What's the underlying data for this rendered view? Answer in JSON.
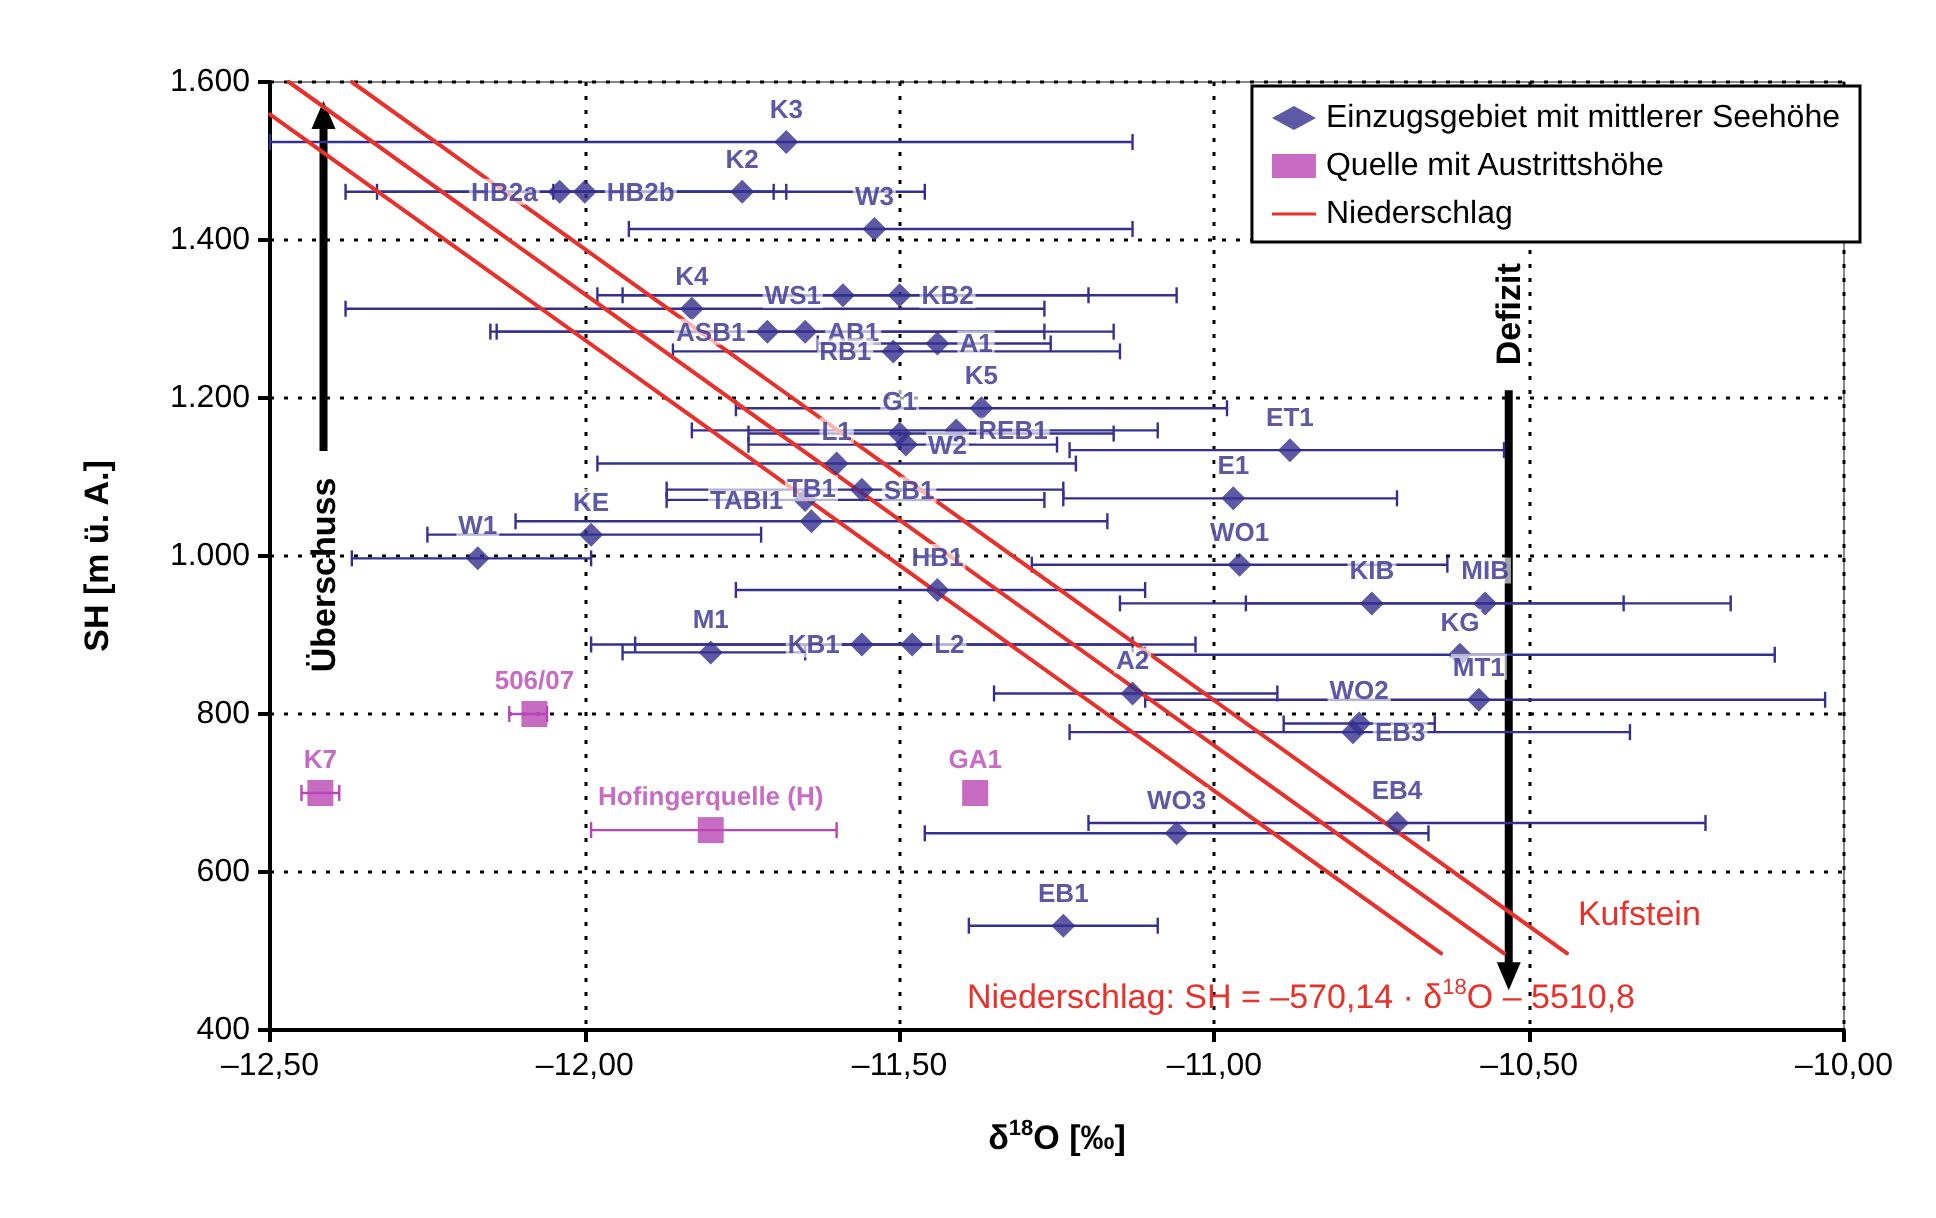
{
  "chart_data": {
    "type": "scatter",
    "xlabel": "δ$^{18}$O [‰]",
    "ylabel": "SH [m ü. A.]",
    "xlim": [
      -12.5,
      -10.0
    ],
    "ylim": [
      400,
      1600
    ],
    "xticks": [
      {
        "value": -12.5,
        "label": "–12,50"
      },
      {
        "value": -12.0,
        "label": "–12,00"
      },
      {
        "value": -11.5,
        "label": "–11,50"
      },
      {
        "value": -11.0,
        "label": "–11,00"
      },
      {
        "value": -10.5,
        "label": "–10,50"
      },
      {
        "value": -10.0,
        "label": "–10,00"
      }
    ],
    "yticks": [
      400,
      600,
      800,
      {
        "value": 1000,
        "label": "1.000"
      },
      {
        "value": 1200,
        "label": "1.200"
      },
      {
        "value": 1400,
        "label": "1.400"
      },
      {
        "value": 1600,
        "label": "1.600"
      }
    ],
    "grid": true,
    "legend": "top right",
    "series": [
      {
        "name": "Einzugsgebiet mit mittlerer Seehöhe",
        "color": "#35308f",
        "marker": "diamond",
        "x": [
          -11.68,
          -12.04,
          -12.0,
          -11.75,
          -11.54,
          -11.83,
          -11.59,
          -11.5,
          -11.71,
          -11.65,
          -11.44,
          -11.51,
          -11.37,
          -11.5,
          -11.41,
          -11.49,
          -10.88,
          -11.6,
          -11.56,
          -11.65,
          -10.97,
          -11.64,
          -11.99,
          -12.17,
          -10.96,
          -11.44,
          -10.75,
          -10.57,
          -11.56,
          -11.48,
          -11.8,
          -10.61,
          -11.13,
          -10.58,
          -10.77,
          -10.78,
          -10.71,
          -11.06,
          -11.24
        ],
        "values": [
          1524,
          1461,
          1461,
          1461,
          1414,
          1313,
          1330,
          1330,
          1284,
          1284,
          1269,
          1259,
          1187,
          1155,
          1159,
          1141,
          1134,
          1117,
          1084,
          1071,
          1073,
          1044,
          1027,
          997,
          989,
          957,
          940,
          940,
          888,
          888,
          878,
          875,
          826,
          818,
          788,
          777,
          662,
          649,
          532
        ],
        "xerrors": [
          [
            -12.5,
            -11.13
          ],
          [
            -12.33,
            -11.7
          ],
          [
            -12.38,
            -11.68
          ],
          [
            -12.05,
            -11.46
          ],
          [
            -11.93,
            -11.13
          ],
          [
            -12.38,
            -11.27
          ],
          [
            -11.94,
            -11.2
          ],
          [
            -11.98,
            -11.06
          ],
          [
            -12.14,
            -11.27
          ],
          [
            -12.15,
            -11.16
          ],
          [
            -11.63,
            -11.26
          ],
          [
            -11.86,
            -11.15
          ],
          [
            -11.76,
            -10.98
          ],
          [
            -11.74,
            -11.16
          ],
          [
            -11.83,
            -11.09
          ],
          [
            -11.74,
            -11.25
          ],
          [
            -11.23,
            -10.54
          ],
          [
            -11.98,
            -11.22
          ],
          [
            -11.87,
            -11.24
          ],
          [
            -11.87,
            -11.27
          ],
          [
            -11.24,
            -10.71
          ],
          [
            -12.11,
            -11.17
          ],
          [
            -12.25,
            -11.72
          ],
          [
            -12.37,
            -11.99
          ],
          [
            -11.29,
            -10.63
          ],
          [
            -11.76,
            -11.11
          ],
          [
            -10.95,
            -10.35
          ],
          [
            -11.15,
            -10.18
          ],
          [
            -11.92,
            -11.13
          ],
          [
            -11.99,
            -11.03
          ],
          [
            -11.94,
            -11.65
          ],
          [
            -11.11,
            -10.11
          ],
          [
            -11.35,
            -10.9
          ],
          [
            -11.11,
            -10.03
          ],
          [
            -10.89,
            -10.65
          ],
          [
            -11.23,
            -10.34
          ],
          [
            -11.2,
            -10.22
          ],
          [
            -11.46,
            -10.66
          ],
          [
            -11.39,
            -11.09
          ]
        ]
      },
      {
        "name": "Quelle mit Austrittshöhe",
        "color": "#b946b4",
        "marker": "square",
        "x": [
          -12.08,
          -12.42,
          -11.38,
          -11.8
        ],
        "values": [
          800,
          700,
          700,
          653
        ],
        "xerrors": [
          [
            -12.12,
            -12.06
          ],
          [
            -12.45,
            -12.39
          ],
          null,
          [
            -11.99,
            -11.6
          ]
        ]
      },
      {
        "name": "Niederschlag",
        "type": "line",
        "color": "#e8312a",
        "marker": "none",
        "line_style": "solid",
        "x": [
          -12.47,
          -10.54
        ],
        "values": [
          1600,
          497
        ]
      },
      {
        "type": "line",
        "color": "#e8312a",
        "marker": "none",
        "line_style": "solid",
        "x": [
          -12.37,
          -10.44
        ],
        "values": [
          1600,
          497
        ]
      },
      {
        "type": "line",
        "color": "#e8312a",
        "marker": "none",
        "line_style": "solid",
        "x": [
          -12.5,
          -10.64
        ],
        "values": [
          1559,
          497
        ]
      }
    ],
    "annotations": [
      "Überschuss",
      "Defizit",
      "Kufstein",
      "Niederschlag: SH = –570,14 · δ$^{18}$O – 5510,8",
      {
        "text": "K3",
        "x": -11.68,
        "y": 1524
      },
      {
        "text": "HB2a",
        "x": -12.04,
        "y": 1461
      },
      {
        "text": "HB2b",
        "x": -12.0,
        "y": 1461
      },
      {
        "text": "K2",
        "x": -11.75,
        "y": 1461
      },
      {
        "text": "W3",
        "x": -11.54,
        "y": 1414
      },
      {
        "text": "K4",
        "x": -11.83,
        "y": 1313
      },
      {
        "text": "WS1",
        "x": -11.59,
        "y": 1330
      },
      {
        "text": "KB2",
        "x": -11.5,
        "y": 1330
      },
      {
        "text": "ASB1",
        "x": -11.71,
        "y": 1284
      },
      {
        "text": "AB1",
        "x": -11.65,
        "y": 1284
      },
      {
        "text": "A1",
        "x": -11.44,
        "y": 1269
      },
      {
        "text": "RB1",
        "x": -11.51,
        "y": 1259
      },
      {
        "text": "K5",
        "x": -11.37,
        "y": 1187
      },
      {
        "text": "G1",
        "x": -11.5,
        "y": 1155
      },
      {
        "text": "REB1",
        "x": -11.41,
        "y": 1159
      },
      {
        "text": "W2",
        "x": -11.49,
        "y": 1141
      },
      {
        "text": "ET1",
        "x": -10.88,
        "y": 1134
      },
      {
        "text": "L1",
        "x": -11.6,
        "y": 1117
      },
      {
        "text": "SB1",
        "x": -11.56,
        "y": 1084
      },
      {
        "text": "TABI1",
        "x": -11.65,
        "y": 1071
      },
      {
        "text": "E1",
        "x": -10.97,
        "y": 1073
      },
      {
        "text": "TB1",
        "x": -11.64,
        "y": 1044
      },
      {
        "text": "KE",
        "x": -11.99,
        "y": 1027
      },
      {
        "text": "W1",
        "x": -12.17,
        "y": 997
      },
      {
        "text": "WO1",
        "x": -10.96,
        "y": 989
      },
      {
        "text": "HB1",
        "x": -11.44,
        "y": 957
      },
      {
        "text": "KIB",
        "x": -10.75,
        "y": 940
      },
      {
        "text": "MIB",
        "x": -10.57,
        "y": 940
      },
      {
        "text": "KB1",
        "x": -11.56,
        "y": 888
      },
      {
        "text": "L2",
        "x": -11.48,
        "y": 888
      },
      {
        "text": "M1",
        "x": -11.8,
        "y": 878
      },
      {
        "text": "KG",
        "x": -10.61,
        "y": 875
      },
      {
        "text": "A2",
        "x": -11.13,
        "y": 826
      },
      {
        "text": "MT1",
        "x": -10.58,
        "y": 818
      },
      {
        "text": "WO2",
        "x": -10.77,
        "y": 788
      },
      {
        "text": "EB3",
        "x": -10.78,
        "y": 777
      },
      {
        "text": "EB4",
        "x": -10.71,
        "y": 662
      },
      {
        "text": "WO3",
        "x": -11.06,
        "y": 649
      },
      {
        "text": "EB1",
        "x": -11.24,
        "y": 532
      },
      {
        "text": "506/07",
        "x": -12.08,
        "y": 800
      },
      {
        "text": "K7",
        "x": -12.42,
        "y": 700
      },
      {
        "text": "GA1",
        "x": -11.38,
        "y": 700
      },
      {
        "text": "Hofingerquelle (H)",
        "x": -11.8,
        "y": 653
      }
    ]
  }
}
